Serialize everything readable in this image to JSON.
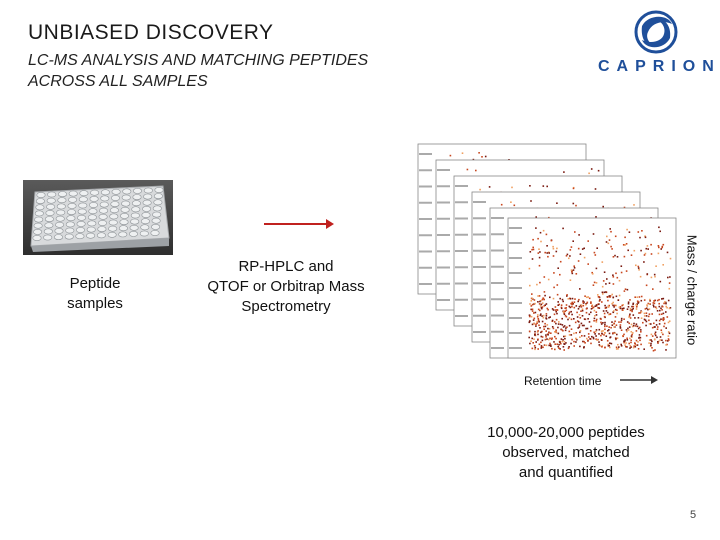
{
  "slide": {
    "title": "UNBIASED DISCOVERY",
    "subtitle_line1": "LC-MS ANALYSIS AND MATCHING PEPTIDES",
    "subtitle_line2": "ACROSS ALL SAMPLES",
    "logo_text": "CAPRION",
    "peptide_line1": "Peptide",
    "peptide_line2": "samples",
    "method_line1": "RP-HPLC and",
    "method_line2": "QTOF or Orbitrap Mass",
    "method_line3": "Spectrometry",
    "y_axis_label": "Mass / charge ratio",
    "x_axis_label": "Retention time",
    "result_line1": "10,000-20,000 peptides",
    "result_line2": "observed, matched",
    "result_line3": "and quantified",
    "page_number": "5"
  },
  "colors": {
    "brand_blue": "#1f4f9a",
    "arrow_red": "#c0211f",
    "heat_dark": "#7a1a10",
    "heat_mid": "#c8471f",
    "heat_light": "#f0a060"
  },
  "icons": [
    "caprion-logo-icon",
    "well-plate-image",
    "right-arrow-icon",
    "spectra-heatmap-image"
  ]
}
